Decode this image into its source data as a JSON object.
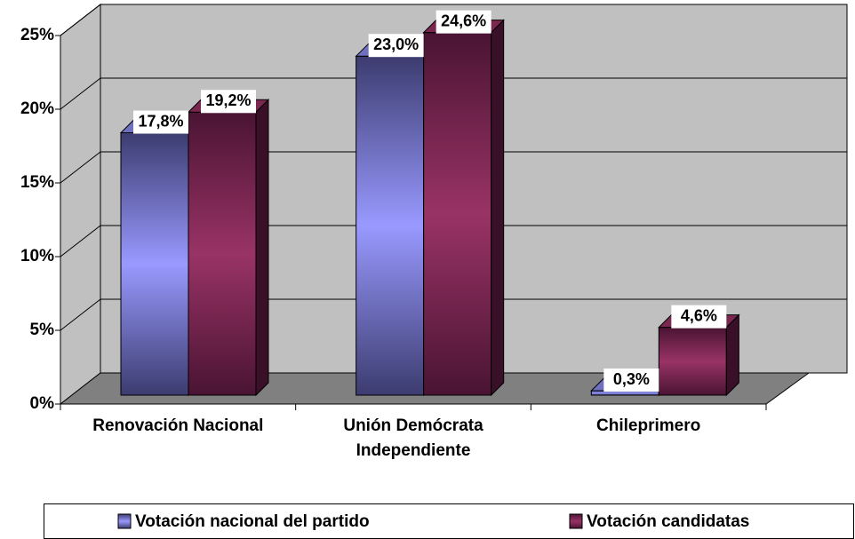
{
  "chart_data": {
    "type": "bar3d",
    "categories": [
      "Renovación Nacional",
      "Unión Demócrata Independiente",
      "Chileprimero"
    ],
    "series": [
      {
        "name": "Votación nacional del partido",
        "color": "#9999ff",
        "values": [
          17.8,
          23.0,
          0.3
        ],
        "value_labels": [
          "17,8%",
          "23,0%",
          "0,3%"
        ]
      },
      {
        "name": "Votación candidatas",
        "color": "#993366",
        "values": [
          19.2,
          24.6,
          4.6
        ],
        "value_labels": [
          "19,2%",
          "24,6%",
          "4,6%"
        ]
      }
    ],
    "ylim": [
      0,
      25
    ],
    "yticks": [
      {
        "value": 0,
        "label": "0%"
      },
      {
        "value": 5,
        "label": "5%"
      },
      {
        "value": 10,
        "label": "10%"
      },
      {
        "value": 15,
        "label": "15%"
      },
      {
        "value": 20,
        "label": "20%"
      },
      {
        "value": 25,
        "label": "25%"
      }
    ],
    "grid": true,
    "legend": "bottom"
  }
}
